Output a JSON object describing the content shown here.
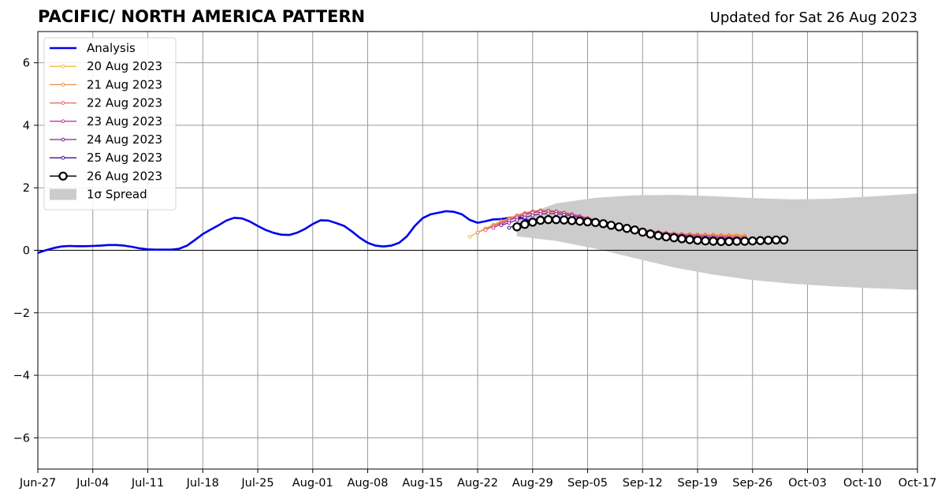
{
  "chart_data": {
    "type": "line",
    "title": "PACIFIC/ NORTH AMERICA PATTERN",
    "subtitle": "Updated for Sat 26 Aug 2023",
    "xlabel": "",
    "ylabel": "",
    "ylim": [
      -7,
      7
    ],
    "xlim": [
      "2023-06-27",
      "2023-10-17"
    ],
    "grid": true,
    "legend_position": "top-left",
    "x_tick_labels": [
      "Jun-27",
      "Jul-04",
      "Jul-11",
      "Jul-18",
      "Jul-25",
      "Aug-01",
      "Aug-08",
      "Aug-15",
      "Aug-22",
      "Aug-29",
      "Sep-05",
      "Sep-12",
      "Sep-19",
      "Sep-26",
      "Oct-03",
      "Oct-10",
      "Oct-17"
    ],
    "y_ticks": [
      -6,
      -4,
      -2,
      0,
      2,
      4,
      6
    ],
    "y_tick_labels": [
      "−6",
      "−4",
      "−2",
      "0",
      "2",
      "4",
      "6"
    ],
    "analysis": {
      "name": "Analysis",
      "color": "#0000ee",
      "start_date": "2023-06-27",
      "values": [
        -0.08,
        0.0,
        0.07,
        0.12,
        0.14,
        0.13,
        0.13,
        0.14,
        0.15,
        0.17,
        0.17,
        0.15,
        0.11,
        0.06,
        0.03,
        0.02,
        0.02,
        0.02,
        0.05,
        0.15,
        0.33,
        0.52,
        0.66,
        0.8,
        0.95,
        1.04,
        1.02,
        0.92,
        0.78,
        0.65,
        0.56,
        0.5,
        0.49,
        0.56,
        0.68,
        0.84,
        0.96,
        0.95,
        0.87,
        0.78,
        0.6,
        0.4,
        0.24,
        0.15,
        0.12,
        0.15,
        0.24,
        0.45,
        0.78,
        1.03,
        1.15,
        1.2,
        1.25,
        1.23,
        1.15,
        0.97,
        0.88,
        0.93,
        0.99,
        1.0,
        1.04,
        1.06,
        1.01,
        0.87
      ]
    },
    "forecasts": [
      {
        "name": "20 Aug 2023",
        "color": "#f5b942",
        "start_date": "2023-08-21",
        "values": [
          0.43,
          0.57,
          0.7,
          0.82,
          0.93,
          1.03,
          1.11,
          1.17,
          1.21,
          1.23,
          1.23,
          1.21,
          1.18,
          1.14,
          1.09,
          1.03,
          0.97,
          0.91,
          0.85,
          0.79,
          0.74,
          0.69,
          0.65,
          0.61,
          0.58,
          0.56,
          0.54,
          0.53,
          0.52,
          0.52,
          0.51,
          0.51,
          0.5,
          0.5,
          0.5,
          0.49
        ]
      },
      {
        "name": "21 Aug 2023",
        "color": "#f08a44",
        "start_date": "2023-08-22",
        "values": [
          0.57,
          0.68,
          0.8,
          0.91,
          1.02,
          1.12,
          1.2,
          1.25,
          1.28,
          1.27,
          1.24,
          1.2,
          1.15,
          1.09,
          1.03,
          0.97,
          0.91,
          0.85,
          0.79,
          0.74,
          0.69,
          0.65,
          0.61,
          0.58,
          0.56,
          0.54,
          0.52,
          0.51,
          0.5,
          0.5,
          0.49,
          0.48,
          0.48,
          0.47,
          0.46
        ]
      },
      {
        "name": "22 Aug 2023",
        "color": "#e06573",
        "start_date": "2023-08-23",
        "values": [
          0.65,
          0.77,
          0.88,
          0.99,
          1.09,
          1.17,
          1.23,
          1.27,
          1.27,
          1.25,
          1.21,
          1.16,
          1.1,
          1.04,
          0.98,
          0.92,
          0.86,
          0.8,
          0.75,
          0.7,
          0.66,
          0.62,
          0.59,
          0.56,
          0.54,
          0.52,
          0.5,
          0.49,
          0.48,
          0.47,
          0.46,
          0.45,
          0.44,
          0.43
        ]
      },
      {
        "name": "23 Aug 2023",
        "color": "#b83f8e",
        "start_date": "2023-08-24",
        "values": [
          0.72,
          0.84,
          0.95,
          1.05,
          1.14,
          1.2,
          1.24,
          1.25,
          1.23,
          1.19,
          1.14,
          1.08,
          1.02,
          0.96,
          0.9,
          0.84,
          0.78,
          0.73,
          0.68,
          0.64,
          0.6,
          0.57,
          0.54,
          0.51,
          0.49,
          0.47,
          0.46,
          0.44,
          0.43,
          0.42,
          0.41,
          0.4,
          0.39
        ]
      },
      {
        "name": "24 Aug 2023",
        "color": "#7e1e9c",
        "start_date": "2023-08-25",
        "values": [
          0.8,
          0.88,
          0.97,
          1.05,
          1.12,
          1.16,
          1.18,
          1.17,
          1.14,
          1.1,
          1.05,
          0.99,
          0.93,
          0.87,
          0.81,
          0.76,
          0.7,
          0.66,
          0.61,
          0.57,
          0.54,
          0.51,
          0.48,
          0.46,
          0.44,
          0.42,
          0.41,
          0.4,
          0.39,
          0.38,
          0.37,
          0.36
        ]
      },
      {
        "name": "25 Aug 2023",
        "color": "#3f0f8c",
        "start_date": "2023-08-26",
        "values": [
          0.72,
          0.82,
          0.9,
          0.97,
          1.02,
          1.04,
          1.04,
          1.02,
          0.99,
          0.95,
          0.9,
          0.85,
          0.8,
          0.75,
          0.7,
          0.65,
          0.6,
          0.56,
          0.52,
          0.49,
          0.46,
          0.43,
          0.41,
          0.39,
          0.38,
          0.36,
          0.35,
          0.34,
          0.33,
          0.32,
          0.32
        ]
      }
    ],
    "forecast_latest": {
      "name": "26 Aug 2023",
      "color": "#000000",
      "start_date": "2023-08-27",
      "values": [
        0.75,
        0.83,
        0.9,
        0.96,
        0.98,
        0.98,
        0.97,
        0.95,
        0.93,
        0.91,
        0.89,
        0.85,
        0.8,
        0.75,
        0.7,
        0.65,
        0.58,
        0.52,
        0.47,
        0.43,
        0.4,
        0.37,
        0.34,
        0.32,
        0.3,
        0.29,
        0.28,
        0.28,
        0.29,
        0.29,
        0.3,
        0.31,
        0.32,
        0.33,
        0.33
      ]
    },
    "spread": {
      "name": "1σ Spread",
      "color": "#cccccc",
      "start_date": "2023-08-27",
      "dates_step_days": 5,
      "upper": [
        1.05,
        1.5,
        1.68,
        1.76,
        1.77,
        1.73,
        1.67,
        1.63,
        1.65,
        1.72,
        1.8,
        1.9
      ],
      "lower": [
        0.45,
        0.3,
        0.05,
        -0.25,
        -0.55,
        -0.78,
        -0.95,
        -1.07,
        -1.15,
        -1.21,
        -1.26,
        -1.3
      ]
    }
  }
}
